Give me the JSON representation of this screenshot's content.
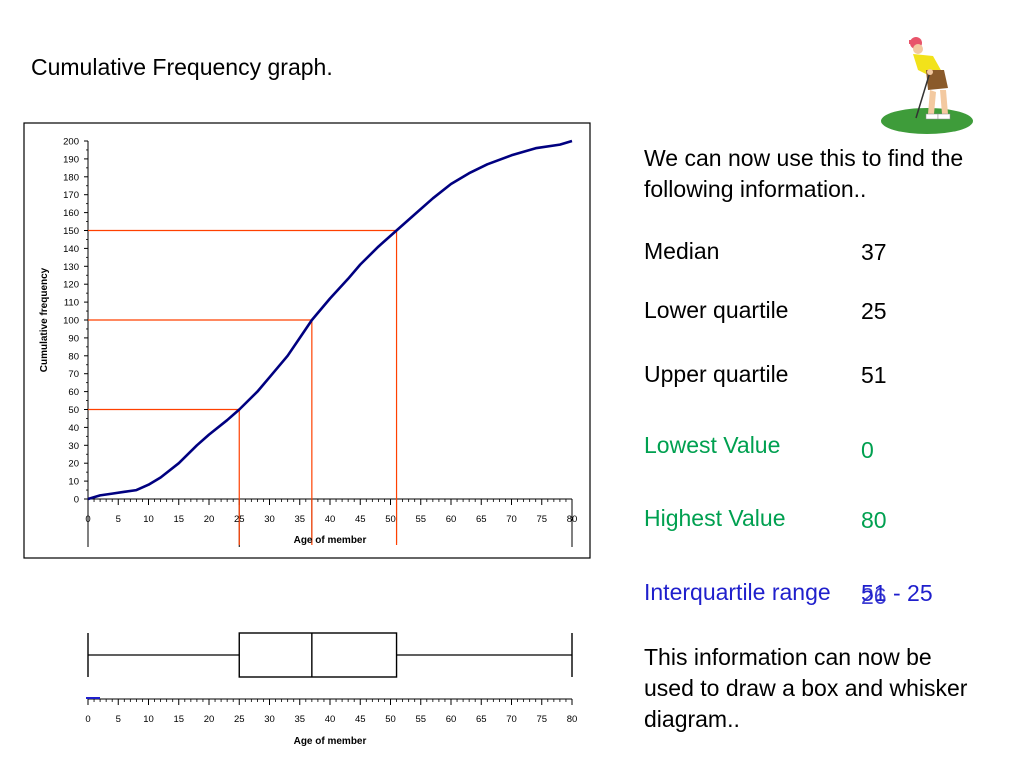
{
  "slide": {
    "title": "Cumulative Frequency graph.",
    "intro": "We can now use this to find the following information..",
    "outro": "This information can now be used to draw a box and whisker diagram..",
    "stats": [
      {
        "label": "Median",
        "value": "37",
        "color": "#000000"
      },
      {
        "label": "Lower quartile",
        "value": "25",
        "color": "#000000"
      },
      {
        "label": "Upper quartile",
        "value": "51",
        "color": "#000000"
      },
      {
        "label": "Lowest Value",
        "value": "0",
        "color": "#00A050"
      },
      {
        "label": "Highest Value",
        "value": "80",
        "color": "#00A050"
      },
      {
        "label": "Interquartile range",
        "value": "51 - 25",
        "alt_value": "26",
        "color": "#1F1FCC"
      }
    ]
  },
  "chart_data": [
    {
      "type": "line",
      "ylabel": "Cumulative frequency",
      "xlabel": "Age of member",
      "xlim": [
        0,
        80
      ],
      "ylim": [
        0,
        200
      ],
      "x_ticks": [
        0,
        5,
        10,
        15,
        20,
        25,
        30,
        35,
        40,
        45,
        50,
        55,
        60,
        65,
        70,
        75,
        80
      ],
      "y_ticks": [
        0,
        10,
        20,
        30,
        40,
        50,
        60,
        70,
        80,
        90,
        100,
        110,
        120,
        130,
        140,
        150,
        160,
        170,
        180,
        190,
        200
      ],
      "series": [
        {
          "color": "#000080",
          "x": [
            0,
            2,
            4,
            6,
            8,
            10,
            12,
            15,
            18,
            20,
            23,
            25,
            28,
            30,
            33,
            35,
            37,
            40,
            43,
            45,
            48,
            51,
            54,
            57,
            60,
            63,
            66,
            70,
            74,
            78,
            80
          ],
          "y": [
            0,
            2,
            3,
            4,
            5,
            8,
            12,
            20,
            30,
            36,
            44,
            50,
            60,
            68,
            80,
            90,
            100,
            112,
            123,
            131,
            141,
            150,
            159,
            168,
            176,
            182,
            187,
            192,
            196,
            198,
            200
          ]
        }
      ],
      "guides": [
        {
          "y": 50,
          "x": 25,
          "color": "#FF4000"
        },
        {
          "y": 100,
          "x": 37,
          "color": "#FF4000"
        },
        {
          "y": 150,
          "x": 51,
          "color": "#FF4000"
        }
      ]
    },
    {
      "type": "boxplot",
      "xlabel": "Age of member",
      "xlim": [
        0,
        80
      ],
      "x_ticks": [
        0,
        5,
        10,
        15,
        20,
        25,
        30,
        35,
        40,
        45,
        50,
        55,
        60,
        65,
        70,
        75,
        80
      ],
      "min": 0,
      "q1": 25,
      "median": 37,
      "q3": 51,
      "max": 80
    }
  ]
}
